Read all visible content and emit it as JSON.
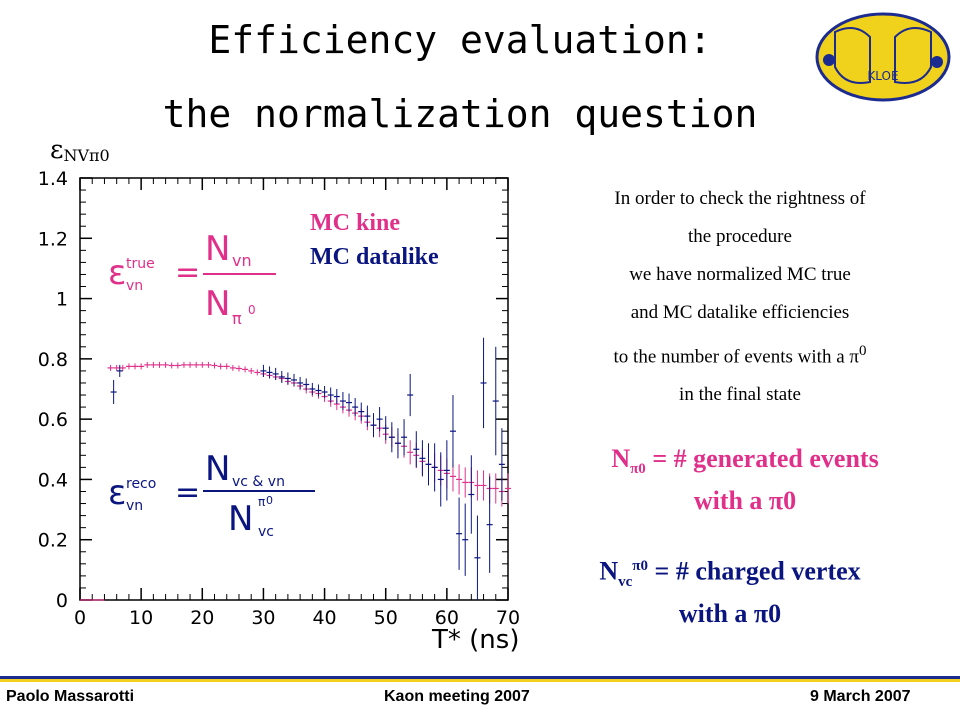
{
  "title_line1": "Efficiency evaluation:",
  "title_line2": "the normalization question",
  "description": [
    "In order to check the rightness of",
    "the procedure",
    "we have normalized MC true",
    "and MC datalike efficiencies",
    "to the number of events with a π",
    "in the final state"
  ],
  "desc_sup": "0",
  "note1": {
    "lhs": "N",
    "sub": "π0",
    "rhs": " = # generated events",
    "line2": "with a π0"
  },
  "note2": {
    "lhs": "N",
    "sub": "vc",
    "sup": "π0",
    "rhs": " = # charged vertex",
    "line2": "with a π0"
  },
  "footer": {
    "author": "Paolo Massarotti",
    "event": "Kaon  meeting 2007",
    "date": "9 March 2007"
  },
  "logo_text": "KLOE",
  "formula_true": {
    "eps": "ε",
    "sup": "true",
    "sub": "vn",
    "num": "N",
    "num_sub": "vn",
    "den": "N",
    "den_sub": "π",
    "den_sup": "0"
  },
  "formula_reco": {
    "eps": "ε",
    "sup": "reco",
    "sub": "vn",
    "num": "N",
    "num_sub": "vc & vn",
    "den": "N",
    "den_sub": "vc",
    "den_sup": "0",
    "den_sup_pre": "π"
  },
  "colors": {
    "mc_kine": "#e0308a",
    "mc_datalike": "#0a1580",
    "footer_blue": "#1b2b8f",
    "footer_yellow": "#f2cf1a"
  },
  "chart_data": {
    "type": "scatter",
    "ylabel_symbol": "ε",
    "ylabel_sub": "NVπ0",
    "xlabel": "T* (ns)",
    "xlim": [
      0,
      70
    ],
    "ylim": [
      0,
      1.4
    ],
    "xticks": [
      "0",
      "10",
      "20",
      "30",
      "40",
      "50",
      "60",
      "70"
    ],
    "yticks": [
      "0",
      "0.2",
      "0.4",
      "0.6",
      "0.8",
      "1",
      "1.2",
      "1.4"
    ],
    "legend": [
      "MC kine",
      "MC datalike"
    ],
    "series": [
      {
        "name": "MC kine",
        "color": "#e0308a",
        "x": [
          0.5,
          1.5,
          2.5,
          3.5,
          5,
          6,
          7,
          8,
          9,
          10,
          11,
          12,
          13,
          14,
          15,
          16,
          17,
          18,
          19,
          20,
          21,
          22,
          23,
          24,
          25,
          26,
          27,
          28,
          29,
          30,
          31,
          32,
          33,
          34,
          35,
          36,
          37,
          38,
          39,
          40,
          41,
          42,
          43,
          44,
          45,
          46,
          47,
          48,
          49,
          50,
          51,
          52,
          53,
          54,
          55,
          56,
          57,
          58,
          59,
          60,
          61,
          62,
          63,
          64,
          65,
          66,
          67,
          68,
          69,
          70
        ],
        "y": [
          0,
          0,
          0,
          0,
          0.77,
          0.77,
          0.77,
          0.775,
          0.775,
          0.775,
          0.78,
          0.78,
          0.78,
          0.78,
          0.778,
          0.778,
          0.78,
          0.78,
          0.78,
          0.78,
          0.78,
          0.778,
          0.775,
          0.775,
          0.77,
          0.768,
          0.765,
          0.76,
          0.755,
          0.75,
          0.745,
          0.74,
          0.735,
          0.725,
          0.72,
          0.71,
          0.7,
          0.69,
          0.685,
          0.675,
          0.66,
          0.65,
          0.64,
          0.63,
          0.62,
          0.61,
          0.59,
          0.58,
          0.57,
          0.55,
          0.54,
          0.52,
          0.51,
          0.49,
          0.48,
          0.46,
          0.45,
          0.44,
          0.43,
          0.42,
          0.41,
          0.4,
          0.39,
          0.39,
          0.38,
          0.38,
          0.37,
          0.37,
          0.36,
          0.37
        ],
        "err": [
          0,
          0,
          0,
          0,
          0.01,
          0.01,
          0.01,
          0.01,
          0.01,
          0.01,
          0.01,
          0.01,
          0.01,
          0.01,
          0.01,
          0.01,
          0.01,
          0.01,
          0.01,
          0.01,
          0.01,
          0.01,
          0.01,
          0.01,
          0.01,
          0.01,
          0.01,
          0.01,
          0.01,
          0.01,
          0.01,
          0.01,
          0.012,
          0.012,
          0.013,
          0.014,
          0.015,
          0.016,
          0.017,
          0.018,
          0.019,
          0.02,
          0.021,
          0.022,
          0.024,
          0.025,
          0.027,
          0.028,
          0.03,
          0.032,
          0.034,
          0.036,
          0.038,
          0.04,
          0.042,
          0.044,
          0.046,
          0.048,
          0.05,
          0.05,
          0.05,
          0.05,
          0.05,
          0.05,
          0.05,
          0.05,
          0.05,
          0.05,
          0.05,
          0.05
        ]
      },
      {
        "name": "MC datalike",
        "color": "#0a1580",
        "x": [
          5.5,
          6.5,
          30,
          31,
          32,
          33,
          34,
          35,
          36,
          37,
          38,
          39,
          40,
          41,
          42,
          43,
          44,
          45,
          46,
          47,
          48,
          49,
          50,
          51,
          52,
          53,
          54,
          55,
          56,
          57,
          58,
          59,
          60,
          61,
          62,
          63,
          64,
          65,
          66,
          67,
          68,
          69
        ],
        "y": [
          0.69,
          0.76,
          0.76,
          0.755,
          0.75,
          0.74,
          0.735,
          0.73,
          0.72,
          0.715,
          0.7,
          0.695,
          0.69,
          0.68,
          0.675,
          0.66,
          0.655,
          0.64,
          0.625,
          0.61,
          0.58,
          0.6,
          0.57,
          0.54,
          0.52,
          0.54,
          0.68,
          0.5,
          0.47,
          0.45,
          0.44,
          0.4,
          0.43,
          0.56,
          0.22,
          0.2,
          0.35,
          0.14,
          0.72,
          0.25,
          0.66,
          0.45
        ],
        "err": [
          0.04,
          0.02,
          0.02,
          0.02,
          0.02,
          0.02,
          0.02,
          0.02,
          0.02,
          0.02,
          0.02,
          0.02,
          0.02,
          0.025,
          0.025,
          0.03,
          0.03,
          0.03,
          0.03,
          0.035,
          0.04,
          0.04,
          0.04,
          0.05,
          0.05,
          0.06,
          0.07,
          0.06,
          0.06,
          0.07,
          0.08,
          0.09,
          0.1,
          0.12,
          0.12,
          0.12,
          0.13,
          0.14,
          0.15,
          0.16,
          0.18,
          0.12
        ]
      }
    ]
  }
}
